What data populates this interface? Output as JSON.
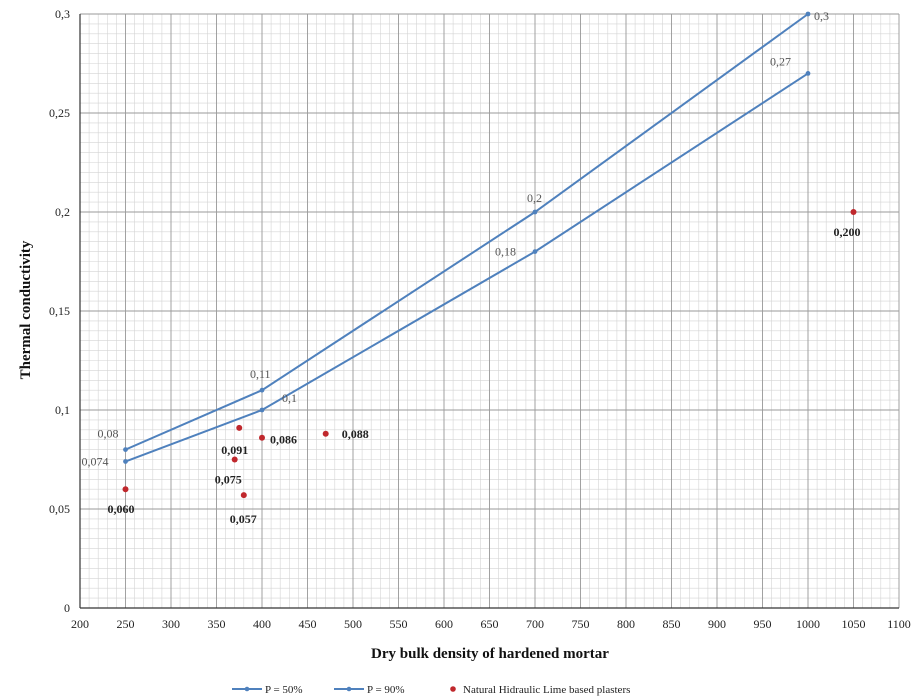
{
  "chart_data": {
    "type": "line",
    "title": "",
    "xlabel": "Dry bulk density of hardened mortar",
    "ylabel": "Thermal conductivity",
    "xlim": [
      200,
      1100
    ],
    "ylim": [
      0,
      0.3
    ],
    "x_ticks": [
      200,
      250,
      300,
      350,
      400,
      450,
      500,
      550,
      600,
      650,
      700,
      750,
      800,
      850,
      900,
      950,
      1000,
      1050,
      1100
    ],
    "x_tick_labels": [
      "200",
      "250",
      "300",
      "350",
      "400",
      "450",
      "500",
      "550",
      "600",
      "650",
      "700",
      "750",
      "800",
      "850",
      "900",
      "950",
      "1000",
      "1050",
      "1100"
    ],
    "y_ticks": [
      0,
      0.05,
      0.1,
      0.15,
      0.2,
      0.25,
      0.3
    ],
    "y_tick_labels": [
      "0",
      "0,05",
      "0,1",
      "0,15",
      "0,2",
      "0,25",
      "0,3"
    ],
    "grid": true,
    "legend_position": "bottom",
    "series": [
      {
        "name": "P = 50%",
        "kind": "line",
        "color": "#4f81bd",
        "points": [
          {
            "x": 250,
            "y": 0.08,
            "label": "0,08"
          },
          {
            "x": 400,
            "y": 0.11,
            "label": "0,11"
          },
          {
            "x": 700,
            "y": 0.2,
            "label": "0,2"
          },
          {
            "x": 1000,
            "y": 0.3,
            "label": "0,3"
          }
        ]
      },
      {
        "name": "P = 90%",
        "kind": "line",
        "color": "#4f81bd",
        "points": [
          {
            "x": 250,
            "y": 0.074,
            "label": "0,074"
          },
          {
            "x": 400,
            "y": 0.1,
            "label": "0,1"
          },
          {
            "x": 700,
            "y": 0.18,
            "label": "0,18"
          },
          {
            "x": 1000,
            "y": 0.27,
            "label": "0,27"
          }
        ]
      },
      {
        "name": "Natural Hidraulic Lime based plasters",
        "kind": "scatter",
        "color": "#c0282d",
        "points": [
          {
            "x": 250,
            "y": 0.06,
            "label": "0,060"
          },
          {
            "x": 370,
            "y": 0.075,
            "label": "0,075"
          },
          {
            "x": 375,
            "y": 0.091,
            "label": "0,091"
          },
          {
            "x": 380,
            "y": 0.057,
            "label": "0,057"
          },
          {
            "x": 400,
            "y": 0.086,
            "label": "0,086"
          },
          {
            "x": 470,
            "y": 0.088,
            "label": "0,088"
          },
          {
            "x": 1050,
            "y": 0.2,
            "label": "0,200"
          }
        ]
      }
    ]
  }
}
